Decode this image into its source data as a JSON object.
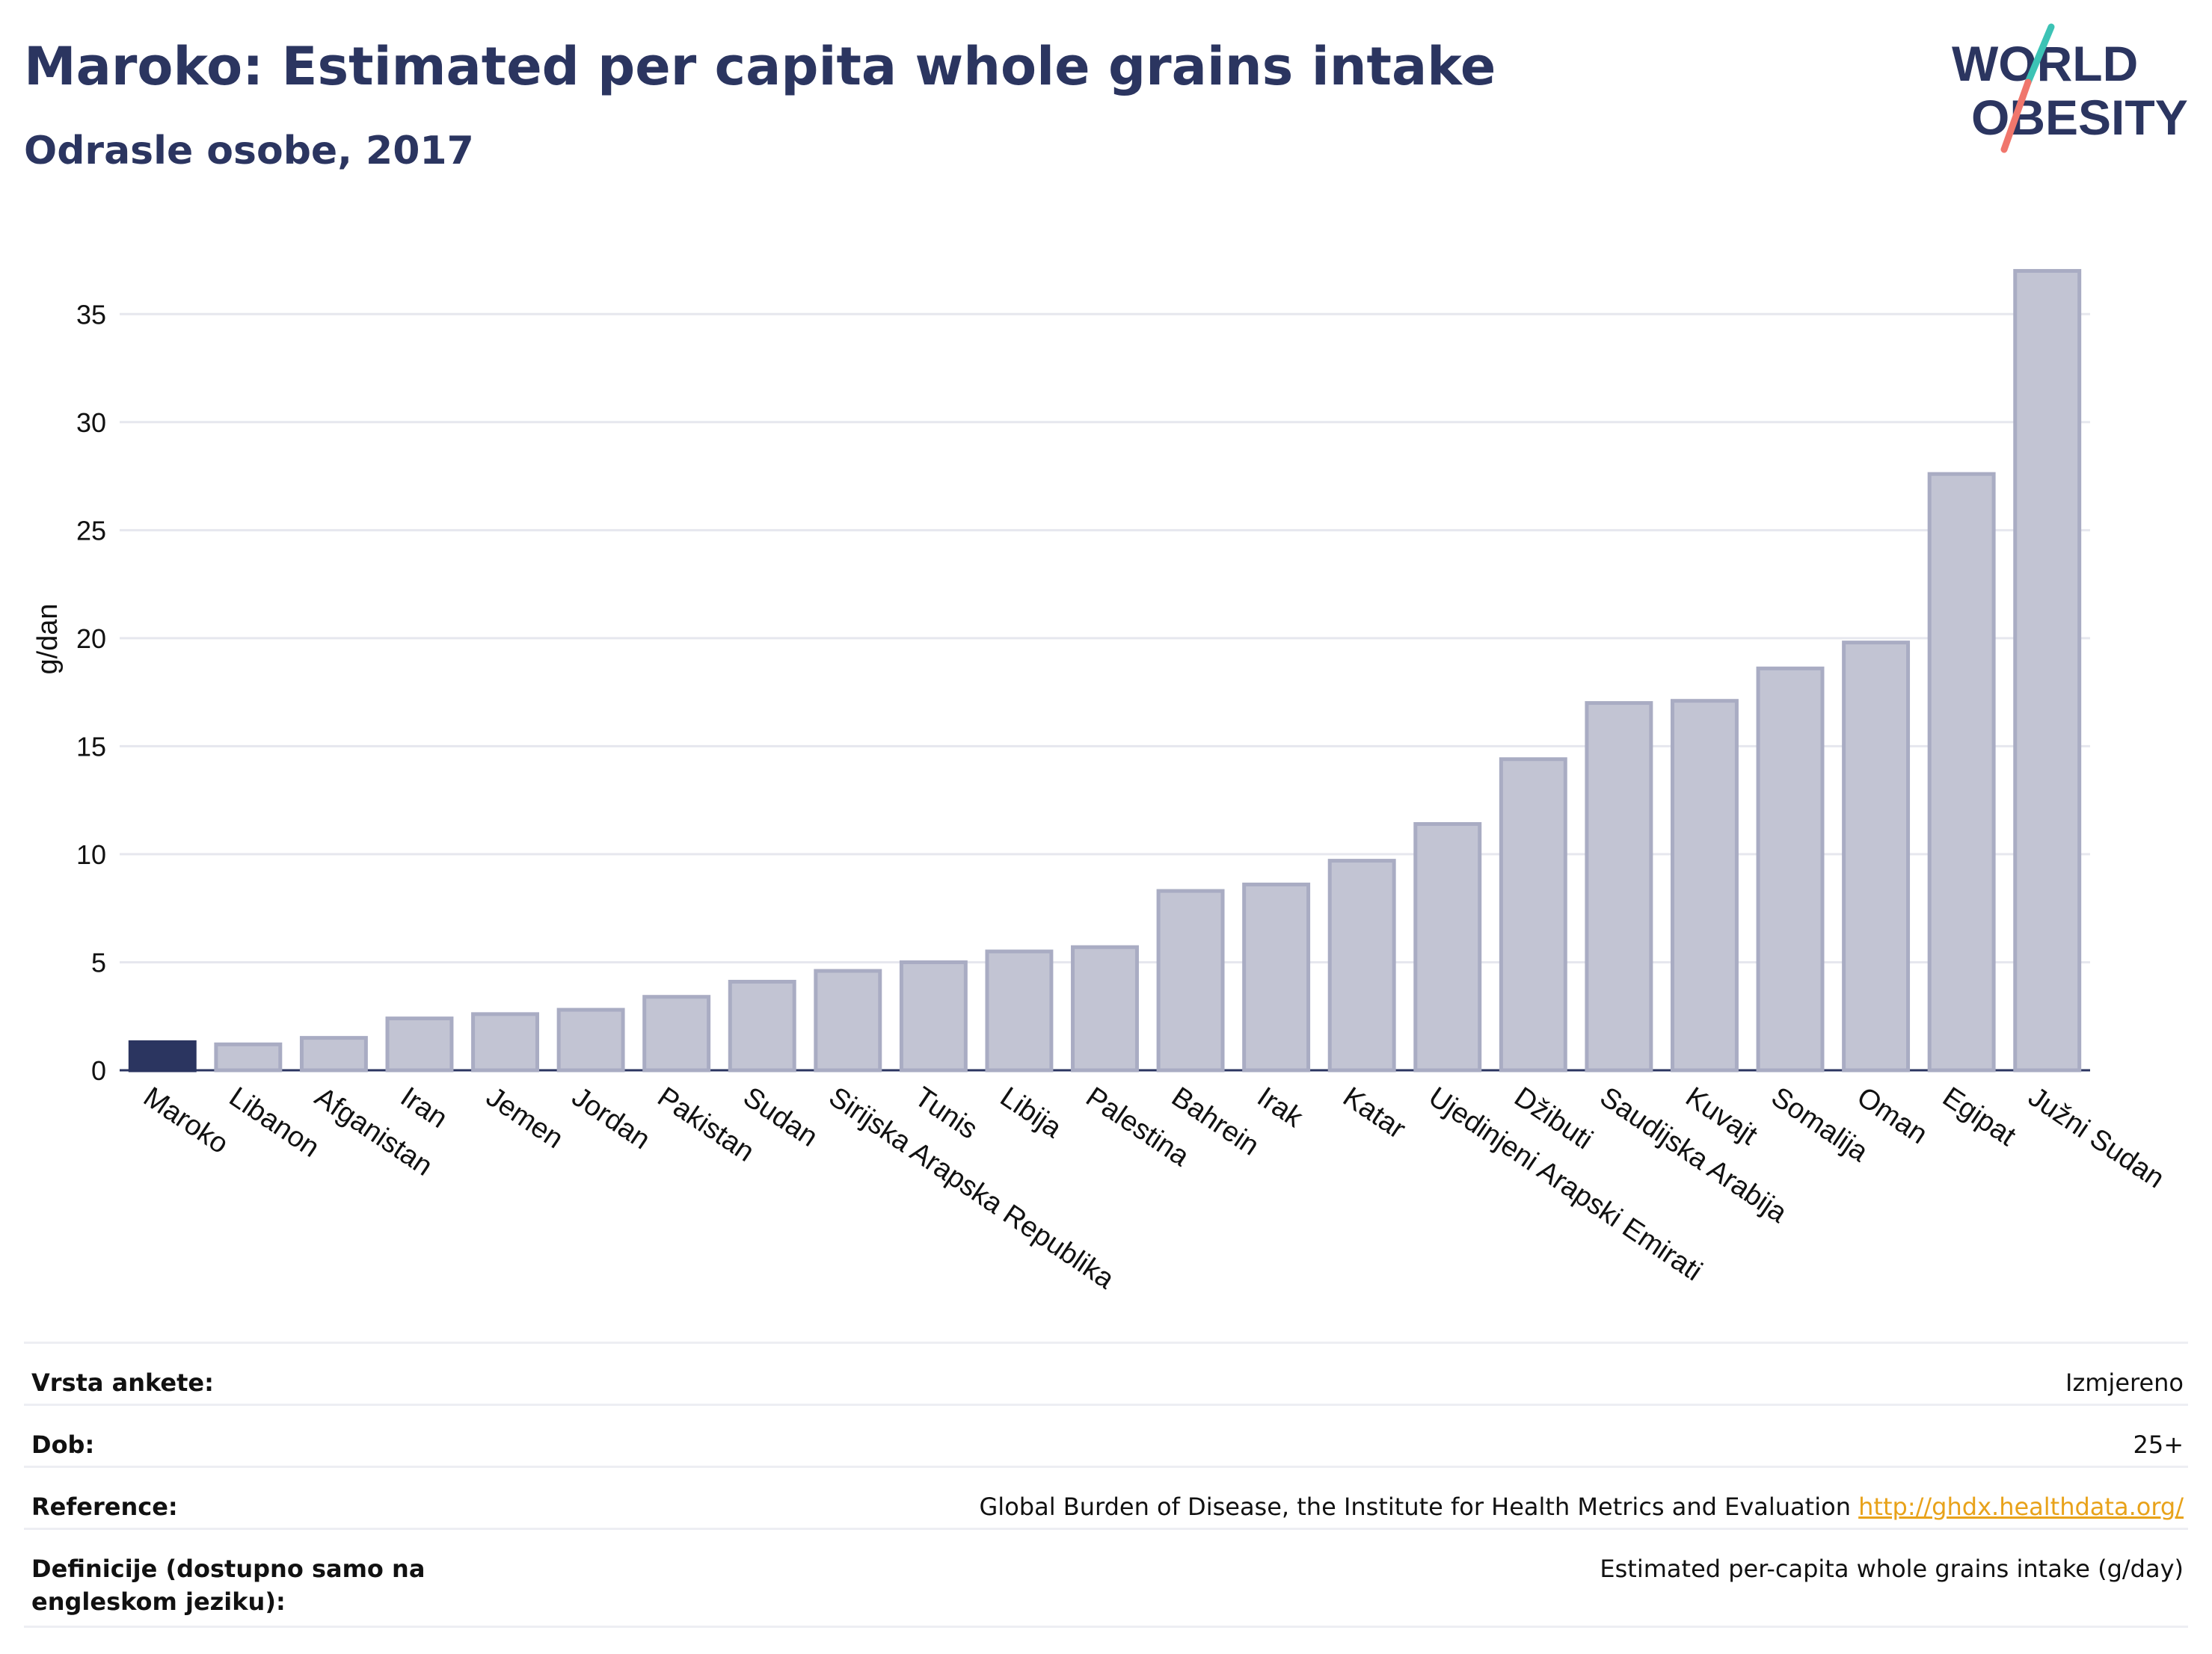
{
  "header": {
    "title": "Maroko: Estimated per capita whole grains intake",
    "subtitle": "Odrasle osobe, 2017",
    "logo_text": [
      "WORLD",
      "OBESITY"
    ]
  },
  "colors": {
    "highlight_bar": "#2b3560",
    "bar_fill": "#c2c4d3",
    "bar_stroke": "#a9acc3",
    "text": "#2b3560",
    "logo_teal": "#3cc3b5",
    "logo_coral": "#f0766c",
    "link": "#e8a21a"
  },
  "chart_data": {
    "type": "bar",
    "title": "Maroko: Estimated per capita whole grains intake",
    "subtitle": "Odrasle osobe, 2017",
    "ylabel": "g/dan",
    "xlabel": "",
    "ylim": [
      0,
      37.5
    ],
    "yticks": [
      0,
      5,
      10,
      15,
      20,
      25,
      30,
      35
    ],
    "grid": true,
    "highlight": "Maroko",
    "categories": [
      "Maroko",
      "Libanon",
      "Afganistan",
      "Iran",
      "Jemen",
      "Jordan",
      "Pakistan",
      "Sudan",
      "Sirijska Arapska Republika",
      "Tunis",
      "Libija",
      "Palestina",
      "Bahrein",
      "Irak",
      "Katar",
      "Ujedinjeni Arapski Emirati",
      "Džibuti",
      "Saudijska Arabija",
      "Kuvajt",
      "Somalija",
      "Oman",
      "Egipat",
      "Južni Sudan"
    ],
    "values": [
      1.3,
      1.2,
      1.5,
      2.4,
      2.6,
      2.8,
      3.4,
      4.1,
      4.6,
      5.0,
      5.5,
      5.7,
      8.3,
      8.6,
      9.7,
      11.4,
      14.4,
      17.0,
      17.1,
      18.6,
      19.8,
      27.6,
      37.0
    ]
  },
  "info": {
    "rows": [
      {
        "label": "Vrsta ankete:",
        "value": "Izmjereno"
      },
      {
        "label": "Dob:",
        "value": "25+"
      },
      {
        "label": "Reference:",
        "value": "Global Burden of Disease, the Institute for Health Metrics and Evaluation",
        "link": "http://ghdx.healthdata.org/"
      },
      {
        "label": "Definicije (dostupno samo na engleskom jeziku):",
        "value": "Estimated per-capita whole grains intake (g/day)"
      }
    ]
  }
}
